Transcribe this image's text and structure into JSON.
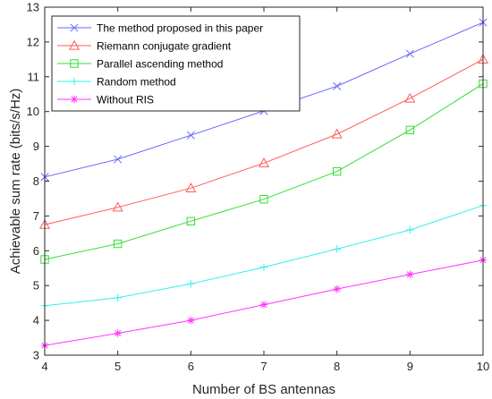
{
  "chart_data": {
    "type": "line",
    "title": "",
    "xlabel": "Number of BS antennas",
    "ylabel": "Achievable sum rate (bits/s/Hz)",
    "x": [
      4,
      5,
      6,
      7,
      8,
      9,
      10
    ],
    "xlim": [
      4,
      10
    ],
    "ylim": [
      3,
      13
    ],
    "xticks": [
      4,
      5,
      6,
      7,
      8,
      9,
      10
    ],
    "yticks": [
      3,
      4,
      5,
      6,
      7,
      8,
      9,
      10,
      11,
      12,
      13
    ],
    "grid": false,
    "legend_position": "top-left",
    "series": [
      {
        "name": "The method proposed in this paper",
        "color": "#6666ff",
        "marker": "x",
        "values": [
          8.12,
          8.63,
          9.32,
          10.02,
          10.73,
          11.66,
          12.56
        ]
      },
      {
        "name": "Riemann conjugate gradient",
        "color": "#ff5a5a",
        "marker": "triangle",
        "values": [
          6.75,
          7.25,
          7.8,
          8.52,
          9.35,
          10.38,
          11.5
        ]
      },
      {
        "name": "Parallel ascending method",
        "color": "#33dd33",
        "marker": "square",
        "values": [
          5.75,
          6.2,
          6.85,
          7.48,
          8.28,
          9.47,
          10.8
        ]
      },
      {
        "name": "Random method",
        "color": "#33eeee",
        "marker": "plus",
        "values": [
          4.42,
          4.65,
          5.05,
          5.53,
          6.05,
          6.6,
          7.3
        ]
      },
      {
        "name": "Without RIS",
        "color": "#ff33ff",
        "marker": "star",
        "values": [
          3.28,
          3.63,
          4.0,
          4.45,
          4.9,
          5.32,
          5.73
        ]
      }
    ]
  }
}
